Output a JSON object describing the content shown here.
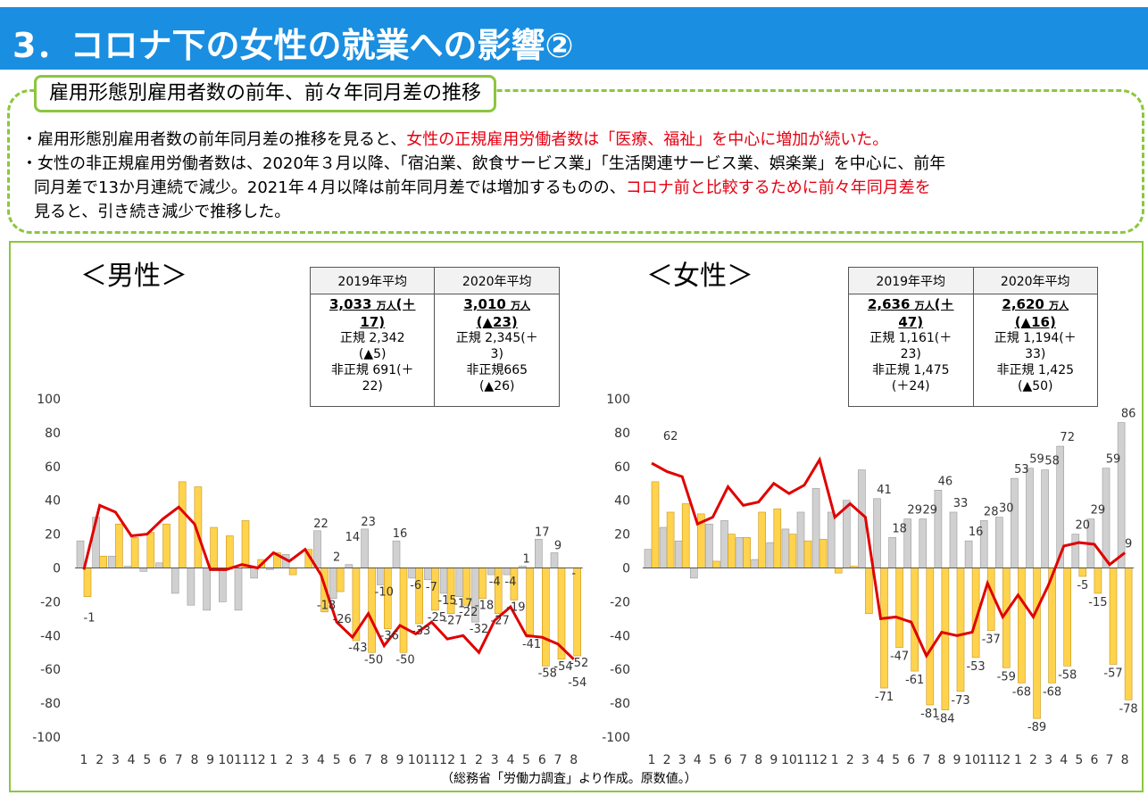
{
  "header": {
    "title": "3．コロナ下の女性の就業への影響②"
  },
  "summary": {
    "subtitle": "雇用形態別雇用者数の前年、前々年同月差の推移",
    "bullet1_a": "・雇用形態別雇用者数の前年同月差の推移を見ると、",
    "bullet1_b": "女性の正規雇用労働者数は「医療、福祉」を中心に増加が続いた。",
    "bullet2_line1": "・女性の非正規雇用労働者数は、2020年３月以降、「宿泊業、飲食サービス業」「生活関連サービス業、娯楽業」を中心に、前年",
    "bullet2_line2_a": "同月差で13か月連続で減少。2021年４月以降は前年同月差では増加するものの、",
    "bullet2_line2_b": "コロナ前と比較するために前々年同月差を",
    "bullet2_line3": "見ると、引き続き減少で推移した。"
  },
  "male": {
    "label": "＜男性＞",
    "table": {
      "h2019": "2019年平均",
      "h2020": "2020年平均",
      "c2019_total_a": "3,033",
      "c2019_total_unit": "万人",
      "c2019_total_b": "(＋",
      "c2019_total_c": "17)",
      "c2019_reg_a": "正規 2,342",
      "c2019_reg_b": "(▲5)",
      "c2019_nonreg_a": "非正規 691(＋",
      "c2019_nonreg_b": "22)",
      "c2020_total_a": "3,010",
      "c2020_total_unit": "万人",
      "c2020_total_b": "(▲23)",
      "c2020_reg_a": "正規 2,345(＋",
      "c2020_reg_b": "3)",
      "c2020_nonreg_a": "非正規665",
      "c2020_nonreg_b": "(▲26)"
    }
  },
  "female": {
    "label": "＜女性＞",
    "table": {
      "h2019": "2019年平均",
      "h2020": "2020年平均",
      "c2019_total_a": "2,636",
      "c2019_total_unit": "万人",
      "c2019_total_b": "(＋",
      "c2019_total_c": "47)",
      "c2019_reg_a": "正規 1,161(＋",
      "c2019_reg_b": "23)",
      "c2019_nonreg_a": "非正規 1,475",
      "c2019_nonreg_b": "(＋24)",
      "c2020_total_a": "2,620",
      "c2020_total_unit": "万人",
      "c2020_total_b": "(▲16)",
      "c2020_reg_a": "正規 1,194(＋",
      "c2020_reg_b": "33)",
      "c2020_nonreg_a": "非正規 1,425",
      "c2020_nonreg_b": "(▲50)"
    }
  },
  "source": "（総務省「労働力調査」より作成。原数値。）",
  "colors": {
    "title_bg": "#1a8ee0",
    "frame": "#8cc63f",
    "red": "#e60012",
    "regular": "#d0d0d0",
    "nonregular": "#ffd34d",
    "line": "#e00000"
  },
  "chart_data": [
    {
      "type": "bar",
      "name": "male",
      "ylim": [
        -100,
        100
      ],
      "yticks": [
        100,
        80,
        60,
        40,
        20,
        0,
        -20,
        -40,
        -60,
        -80,
        -100
      ],
      "categories": [
        "1",
        "2",
        "3",
        "4",
        "5",
        "6",
        "7",
        "8",
        "9",
        "10",
        "11",
        "12",
        "1",
        "2",
        "3",
        "4",
        "5",
        "6",
        "7",
        "8",
        "9",
        "10",
        "11",
        "12",
        "1",
        "2",
        "3",
        "4",
        "5",
        "6",
        "7",
        "8"
      ],
      "series": [
        {
          "name": "正規",
          "kind": "bar",
          "values": [
            16,
            30,
            7,
            1,
            -2,
            3,
            -15,
            -22,
            -25,
            -20,
            -25,
            -6,
            -1,
            8,
            0,
            22,
            -18,
            2,
            23,
            -10,
            16,
            -6,
            -7,
            -15,
            -17,
            -32,
            -4,
            -4,
            1,
            17,
            9,
            0
          ]
        },
        {
          "name": "非正規",
          "kind": "bar",
          "values": [
            -17,
            7,
            26,
            18,
            21,
            26,
            51,
            48,
            24,
            19,
            28,
            5,
            9,
            -4,
            11,
            -26,
            -14,
            -43,
            -50,
            -36,
            -50,
            -33,
            -25,
            -27,
            -22,
            -18,
            -27,
            -19,
            -41,
            -58,
            -54,
            -52
          ]
        },
        {
          "name": "雇用者計",
          "kind": "line",
          "values": [
            -1,
            37,
            33,
            19,
            20,
            29,
            36,
            26,
            -1,
            -1,
            2,
            0,
            9,
            4,
            11,
            -4,
            -32,
            -41,
            -27,
            -46,
            -34,
            -39,
            -32,
            -42,
            -40,
            -50,
            -31,
            -23,
            -40,
            -41,
            -45,
            -54
          ]
        }
      ],
      "value_labels": [
        "-1",
        "22",
        "-18",
        "2",
        "-26",
        "14",
        "-43",
        "23",
        "-50",
        "-10",
        "-36",
        "16",
        "-50",
        "-6",
        "-33",
        "-7",
        "-25",
        "-15",
        "-27",
        "-17",
        "-22",
        "-32",
        "-18",
        "-4",
        "-27",
        "-4",
        "-19",
        "1",
        "-41",
        "17",
        "-58",
        "9",
        "-54",
        "-",
        "-52",
        "-54"
      ]
    },
    {
      "type": "bar",
      "name": "female",
      "ylim": [
        -100,
        100
      ],
      "yticks": [
        100,
        80,
        60,
        40,
        20,
        0,
        -20,
        -40,
        -60,
        -80,
        -100
      ],
      "categories": [
        "1",
        "2",
        "3",
        "4",
        "5",
        "6",
        "7",
        "8",
        "9",
        "10",
        "11",
        "12",
        "1",
        "2",
        "3",
        "4",
        "5",
        "6",
        "7",
        "8",
        "9",
        "10",
        "11",
        "12",
        "1",
        "2",
        "3",
        "4",
        "5",
        "6",
        "7",
        "8"
      ],
      "series": [
        {
          "name": "正規",
          "kind": "bar",
          "values": [
            11,
            24,
            16,
            -6,
            26,
            28,
            18,
            5,
            15,
            23,
            33,
            47,
            33,
            40,
            58,
            41,
            18,
            29,
            29,
            46,
            33,
            16,
            28,
            30,
            53,
            59,
            58,
            72,
            20,
            29,
            59,
            86
          ]
        },
        {
          "name": "非正規",
          "kind": "bar",
          "values": [
            51,
            33,
            38,
            32,
            4,
            20,
            18,
            33,
            35,
            20,
            16,
            17,
            -3,
            1,
            -27,
            -71,
            -47,
            -61,
            -81,
            -84,
            -73,
            -53,
            -37,
            -59,
            -68,
            -89,
            -68,
            -58,
            -5,
            -15,
            -57,
            -78
          ]
        },
        {
          "name": "雇用者計",
          "kind": "line",
          "values": [
            62,
            57,
            54,
            26,
            30,
            48,
            37,
            39,
            50,
            44,
            49,
            64,
            30,
            38,
            30,
            -30,
            -29,
            -32,
            -52,
            -38,
            -40,
            -38,
            -9,
            -29,
            -16,
            -29,
            -10,
            13,
            15,
            14,
            2,
            9
          ]
        }
      ],
      "value_labels": [
        "62",
        "41",
        "18",
        "29",
        "29",
        "46",
        "33",
        "16",
        "28",
        "30",
        "53",
        "59",
        "58",
        "72",
        "20",
        "29",
        "59",
        "86",
        "9",
        "-71",
        "-47",
        "-61",
        "-81",
        "-84",
        "-73",
        "-53",
        "-37",
        "-59",
        "-68",
        "-89",
        "-68",
        "-58",
        "-5",
        "-15",
        "-57",
        "-78"
      ]
    }
  ]
}
